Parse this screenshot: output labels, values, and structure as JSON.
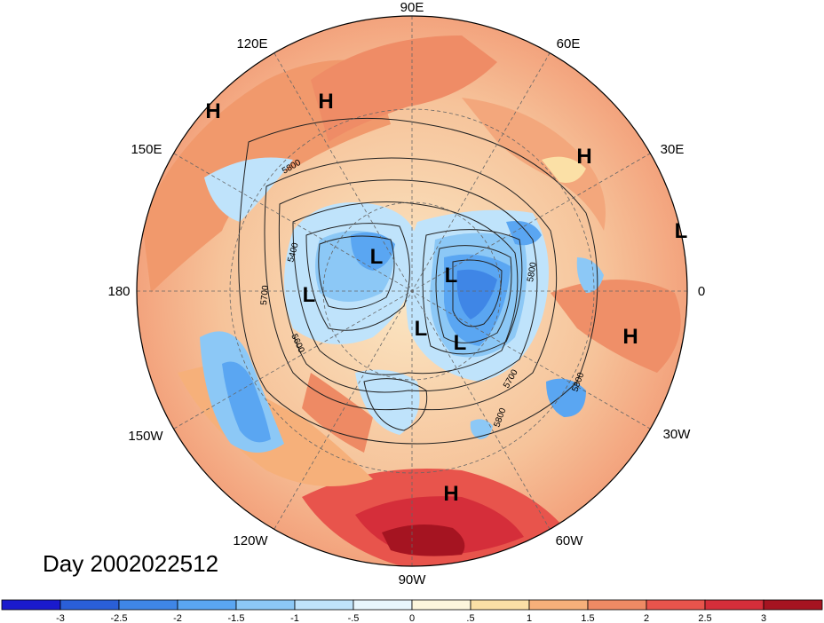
{
  "title": "Day 2002022512",
  "map": {
    "longitude_labels": [
      "90E",
      "60E",
      "30E",
      "0",
      "30W",
      "60W",
      "90W",
      "120W",
      "150W",
      "180",
      "150E",
      "120E"
    ],
    "high_low": [
      {
        "name": "high-120e",
        "text": "H"
      },
      {
        "name": "high-siberia",
        "text": "H"
      },
      {
        "name": "high-middle-east",
        "text": "H"
      },
      {
        "name": "low-africa",
        "text": "L"
      },
      {
        "name": "high-south-africa",
        "text": "H"
      },
      {
        "name": "high-south-america",
        "text": "H"
      },
      {
        "name": "low-north-pacific",
        "text": "L"
      },
      {
        "name": "low-arctic-1",
        "text": "L"
      },
      {
        "name": "low-arctic-2",
        "text": "L"
      },
      {
        "name": "low-canada",
        "text": "L"
      },
      {
        "name": "low-hudson",
        "text": "L"
      }
    ],
    "contour_labels": [
      "5800",
      "5400",
      "5700",
      "5600",
      "5800",
      "5700",
      "5800",
      "5800"
    ]
  },
  "colorbar": {
    "ticks": [
      "-3",
      "-2.5",
      "-2",
      "-1.5",
      "-1",
      "-.5",
      "0",
      ".5",
      "1",
      "1.5",
      "2",
      "2.5",
      "3"
    ],
    "colors": [
      "#1a1acd",
      "#2a5fd8",
      "#3f86e6",
      "#5aa6f2",
      "#8cc8f6",
      "#bfe3fb",
      "#e8f6fd",
      "#fdf6dc",
      "#fbe0a6",
      "#f6b07a",
      "#ee8a64",
      "#e8544c",
      "#d52e3a",
      "#a51421"
    ]
  }
}
